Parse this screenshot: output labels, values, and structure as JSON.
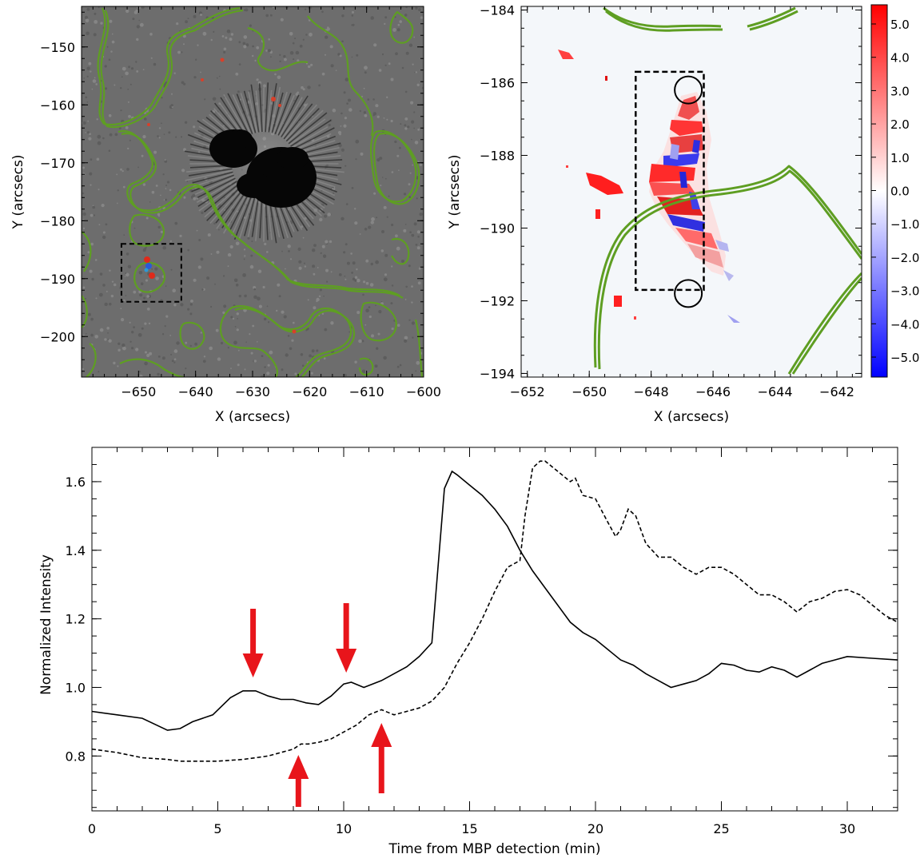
{
  "chart_data": [
    {
      "type": "heatmap",
      "xlabel": "X (arcsecs)",
      "ylabel": "Y (arcsecs)",
      "xlim": [
        -660,
        -600
      ],
      "ylim": [
        -207,
        -143
      ],
      "xticks": [
        -650,
        -640,
        -630,
        -620,
        -610,
        -600
      ],
      "yticks": [
        -150,
        -160,
        -170,
        -180,
        -190,
        -200
      ],
      "box": {
        "x0": -653,
        "x1": -642.5,
        "y0": -194,
        "y1": -184
      },
      "colors": {
        "contour": "#5e9e22",
        "background": "#6a6a6a",
        "umbra": "#050505"
      }
    },
    {
      "type": "heatmap",
      "xlabel": "X (arcsecs)",
      "ylabel": "Y (arcsecs)",
      "xlim": [
        -652.2,
        -641.2
      ],
      "ylim": [
        -194.1,
        -183.9
      ],
      "xticks": [
        -652,
        -650,
        -648,
        -646,
        -644,
        -642
      ],
      "yticks": [
        -184,
        -186,
        -188,
        -190,
        -192,
        -194
      ],
      "box": {
        "x0": -648.5,
        "x1": -646.3,
        "y0": -191.7,
        "y1": -185.7
      },
      "circles": [
        {
          "x": -646.8,
          "y": -186.2
        },
        {
          "x": -646.8,
          "y": -191.8
        }
      ],
      "colorbar": {
        "labels": [
          "5.0",
          "4.0",
          "3.0",
          "2.0",
          "1.0",
          "0.0",
          "-1.0",
          "-2.0",
          "-3.0",
          "-4.0",
          "-5.0"
        ]
      },
      "colors": {
        "contour": "#5e9e22",
        "positive": "#ff1e1e",
        "negative": "#1e1eff"
      }
    },
    {
      "type": "line",
      "xlabel": "Time from MBP detection (min)",
      "ylabel": "Normalized Intensity",
      "xlim": [
        0,
        32
      ],
      "ylim": [
        0.64,
        1.7
      ],
      "xticks": [
        0,
        5,
        10,
        15,
        20,
        25,
        30
      ],
      "yticks": [
        "0.8",
        "1.0",
        "1.2",
        "1.4",
        "1.6"
      ],
      "series": [
        {
          "style": "solid",
          "x": [
            0,
            1,
            2,
            3,
            3.5,
            4,
            4.8,
            5.5,
            6,
            6.5,
            7,
            7.5,
            8,
            8.5,
            9,
            9.5,
            10,
            10.3,
            10.8,
            11.5,
            12,
            12.5,
            13,
            13.5,
            13.8,
            14,
            14.3,
            14.5,
            15,
            15.5,
            16,
            16.5,
            17,
            17.5,
            18,
            18.5,
            19,
            19.5,
            20,
            20.5,
            21,
            21.5,
            22,
            22.5,
            23,
            23.5,
            24,
            24.5,
            25,
            25.5,
            26,
            26.5,
            27,
            27.5,
            28,
            28.5,
            29,
            29.5,
            30,
            31,
            32
          ],
          "y": [
            0.93,
            0.92,
            0.91,
            0.875,
            0.88,
            0.9,
            0.92,
            0.97,
            0.99,
            0.99,
            0.975,
            0.965,
            0.965,
            0.955,
            0.95,
            0.975,
            1.01,
            1.015,
            1.0,
            1.02,
            1.04,
            1.06,
            1.09,
            1.13,
            1.4,
            1.58,
            1.63,
            1.62,
            1.59,
            1.56,
            1.52,
            1.47,
            1.4,
            1.34,
            1.29,
            1.24,
            1.19,
            1.16,
            1.14,
            1.11,
            1.08,
            1.065,
            1.04,
            1.02,
            1.0,
            1.01,
            1.02,
            1.04,
            1.07,
            1.065,
            1.05,
            1.045,
            1.06,
            1.05,
            1.03,
            1.05,
            1.07,
            1.08,
            1.09,
            1.085,
            1.08
          ]
        },
        {
          "style": "dashed",
          "x": [
            0,
            1,
            2,
            3,
            3.5,
            4,
            5,
            6,
            6.5,
            7,
            7.5,
            8,
            8.3,
            8.6,
            9,
            9.5,
            10,
            10.5,
            11,
            11.5,
            12,
            12.5,
            13,
            13.5,
            14,
            14.5,
            15,
            15.5,
            16,
            16.5,
            17,
            17.2,
            17.5,
            17.8,
            18,
            18.5,
            19,
            19.2,
            19.5,
            20,
            20.5,
            20.8,
            21,
            21.3,
            21.6,
            22,
            22.5,
            23,
            23.5,
            24,
            24.5,
            25,
            25.5,
            26,
            26.5,
            27,
            27.5,
            28,
            28.5,
            29,
            29.5,
            30,
            30.5,
            31,
            31.5,
            32
          ],
          "y": [
            0.82,
            0.81,
            0.795,
            0.79,
            0.785,
            0.785,
            0.785,
            0.79,
            0.795,
            0.8,
            0.81,
            0.82,
            0.835,
            0.835,
            0.84,
            0.85,
            0.87,
            0.89,
            0.92,
            0.935,
            0.92,
            0.93,
            0.94,
            0.96,
            1.0,
            1.07,
            1.13,
            1.2,
            1.28,
            1.35,
            1.37,
            1.5,
            1.64,
            1.66,
            1.66,
            1.63,
            1.6,
            1.61,
            1.56,
            1.55,
            1.48,
            1.44,
            1.46,
            1.52,
            1.5,
            1.42,
            1.38,
            1.38,
            1.35,
            1.33,
            1.35,
            1.35,
            1.33,
            1.3,
            1.27,
            1.27,
            1.25,
            1.22,
            1.25,
            1.26,
            1.28,
            1.285,
            1.27,
            1.24,
            1.21,
            1.19
          ]
        }
      ],
      "annotations": [
        {
          "x": 6.4,
          "direction": "down",
          "color": "#e8151b"
        },
        {
          "x": 10.1,
          "direction": "down",
          "color": "#e8151b"
        },
        {
          "x": 8.2,
          "direction": "up",
          "color": "#e8151b"
        },
        {
          "x": 11.5,
          "direction": "up",
          "color": "#e8151b"
        }
      ]
    }
  ]
}
